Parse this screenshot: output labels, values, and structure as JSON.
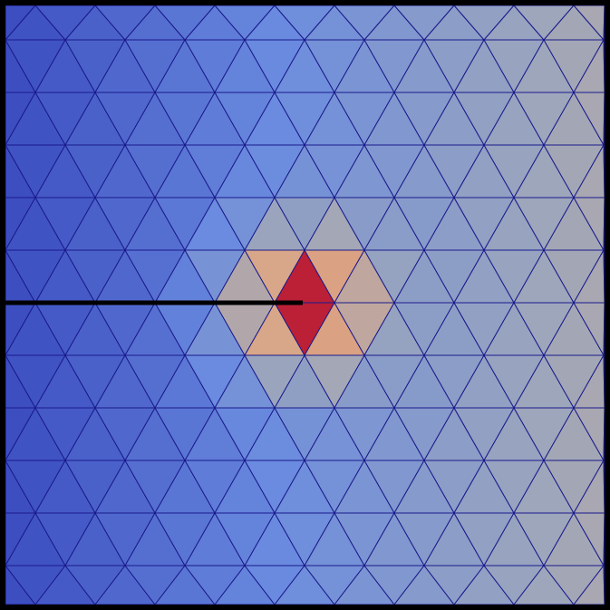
{
  "colors": {
    "background": "#ffffff",
    "mesh_edge": "#1a1a8c",
    "border": "#000000",
    "crack": "#000000",
    "colormap": [
      "#3b4cc0",
      "#6a8bdf",
      "#9ea7ba",
      "#dba686",
      "#b40426"
    ]
  },
  "field": {
    "description_shown": "",
    "left_edge_level": 0.0,
    "right_edge_level": 0.55,
    "crack_tip_peak": 1.0
  },
  "mesh": {
    "rows": 12,
    "columns": 12,
    "pattern": "equilateral-triangles"
  }
}
